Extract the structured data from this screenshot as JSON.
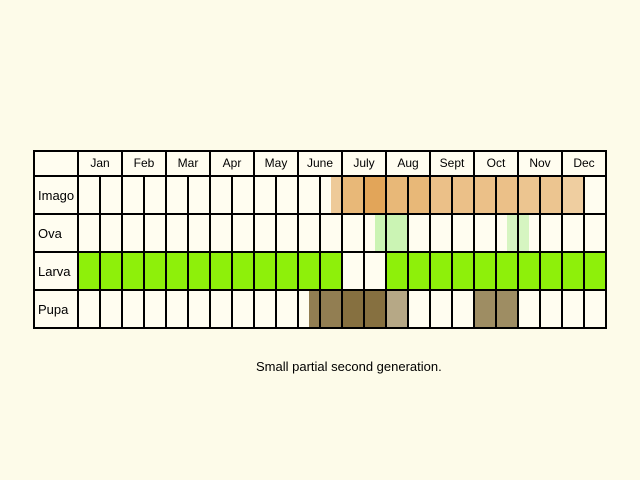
{
  "caption": "Small partial second generation.",
  "chart_data": {
    "type": "table",
    "months": [
      "Jan",
      "Feb",
      "Mar",
      "Apr",
      "May",
      "June",
      "July",
      "Aug",
      "Sept",
      "Oct",
      "Nov",
      "Dec"
    ],
    "periods_per_month": 2,
    "stages": [
      {
        "name": "Imago",
        "color": "#e0a050",
        "periods": [
          {
            "from": 11.5,
            "to": 12.0,
            "opacity": 0.55
          },
          {
            "from": 12.0,
            "to": 13.0,
            "opacity": 0.75
          },
          {
            "from": 13.0,
            "to": 14.0,
            "opacity": 0.95
          },
          {
            "from": 14.0,
            "to": 16.0,
            "opacity": 0.75
          },
          {
            "from": 16.0,
            "to": 18.0,
            "opacity": 0.65
          },
          {
            "from": 18.0,
            "to": 20.0,
            "opacity": 0.65
          },
          {
            "from": 20.0,
            "to": 22.0,
            "opacity": 0.6
          },
          {
            "from": 22.0,
            "to": 23.0,
            "opacity": 0.5
          }
        ]
      },
      {
        "name": "Ova",
        "color": "#b5ef9a",
        "periods": [
          {
            "from": 13.5,
            "to": 15.0,
            "opacity": 0.7
          },
          {
            "from": 19.5,
            "to": 20.5,
            "opacity": 0.55
          }
        ]
      },
      {
        "name": "Larva",
        "color": "#8ef00a",
        "periods": [
          {
            "from": 0,
            "to": 12.0,
            "opacity": 1
          },
          {
            "from": 14.0,
            "to": 24.0,
            "opacity": 1
          }
        ]
      },
      {
        "name": "Pupa",
        "color": "#867040",
        "periods": [
          {
            "from": 10.5,
            "to": 12.0,
            "opacity": 0.9
          },
          {
            "from": 12.0,
            "to": 14.0,
            "opacity": 1
          },
          {
            "from": 14.0,
            "to": 15.0,
            "opacity": 0.6
          },
          {
            "from": 18.0,
            "to": 20.0,
            "opacity": 0.8
          }
        ]
      }
    ]
  }
}
